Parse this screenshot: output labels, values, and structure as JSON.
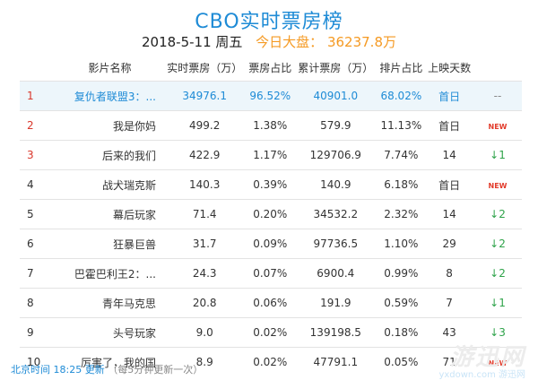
{
  "title": "CBO实时票房榜",
  "date": "2018-5-11 周五",
  "total_label": "今日大盘：",
  "total_value": "36237.8万",
  "columns": [
    "影片名称",
    "实时票房（万）",
    "票房占比",
    "累计票房（万）",
    "排片占比",
    "上映天数"
  ],
  "rows": [
    {
      "rank": "1",
      "name": "复仇者联盟3：...",
      "realtime": "34976.1",
      "share": "96.52%",
      "cumulative": "40901.0",
      "screening": "68.02%",
      "days": "首日",
      "trend": "--"
    },
    {
      "rank": "2",
      "name": "我是你妈",
      "realtime": "499.2",
      "share": "1.38%",
      "cumulative": "579.9",
      "screening": "11.13%",
      "days": "首日",
      "trend": "NEW"
    },
    {
      "rank": "3",
      "name": "后来的我们",
      "realtime": "422.9",
      "share": "1.17%",
      "cumulative": "129706.9",
      "screening": "7.74%",
      "days": "14",
      "trend": "↓1"
    },
    {
      "rank": "4",
      "name": "战犬瑞克斯",
      "realtime": "140.3",
      "share": "0.39%",
      "cumulative": "140.9",
      "screening": "6.18%",
      "days": "首日",
      "trend": "NEW"
    },
    {
      "rank": "5",
      "name": "幕后玩家",
      "realtime": "71.4",
      "share": "0.20%",
      "cumulative": "34532.2",
      "screening": "2.32%",
      "days": "14",
      "trend": "↓2"
    },
    {
      "rank": "6",
      "name": "狂暴巨兽",
      "realtime": "31.7",
      "share": "0.09%",
      "cumulative": "97736.5",
      "screening": "1.10%",
      "days": "29",
      "trend": "↓2"
    },
    {
      "rank": "7",
      "name": "巴霍巴利王2：...",
      "realtime": "24.3",
      "share": "0.07%",
      "cumulative": "6900.4",
      "screening": "0.99%",
      "days": "8",
      "trend": "↓2"
    },
    {
      "rank": "8",
      "name": "青年马克思",
      "realtime": "20.8",
      "share": "0.06%",
      "cumulative": "191.9",
      "screening": "0.59%",
      "days": "7",
      "trend": "↓1"
    },
    {
      "rank": "9",
      "name": "头号玩家",
      "realtime": "9.0",
      "share": "0.02%",
      "cumulative": "139198.5",
      "screening": "0.18%",
      "days": "43",
      "trend": "↓3"
    },
    {
      "rank": "10",
      "name": "厉害了，我的国",
      "realtime": "8.9",
      "share": "0.02%",
      "cumulative": "47791.1",
      "screening": "0.05%",
      "days": "71",
      "trend": "NEW"
    }
  ],
  "footer": {
    "time": "北京时间 18:25 更新",
    "note": "（每5分钟更新一次）"
  },
  "watermark": {
    "main": "游迅网",
    "sub": "yxdown.com",
    "sub2": "游迅网"
  },
  "colors": {
    "accent": "#1e8bd6",
    "orange": "#f59a23",
    "rank_red": "#d9372b",
    "up_green": "#2fa34a",
    "new_red": "#e23b2b"
  }
}
